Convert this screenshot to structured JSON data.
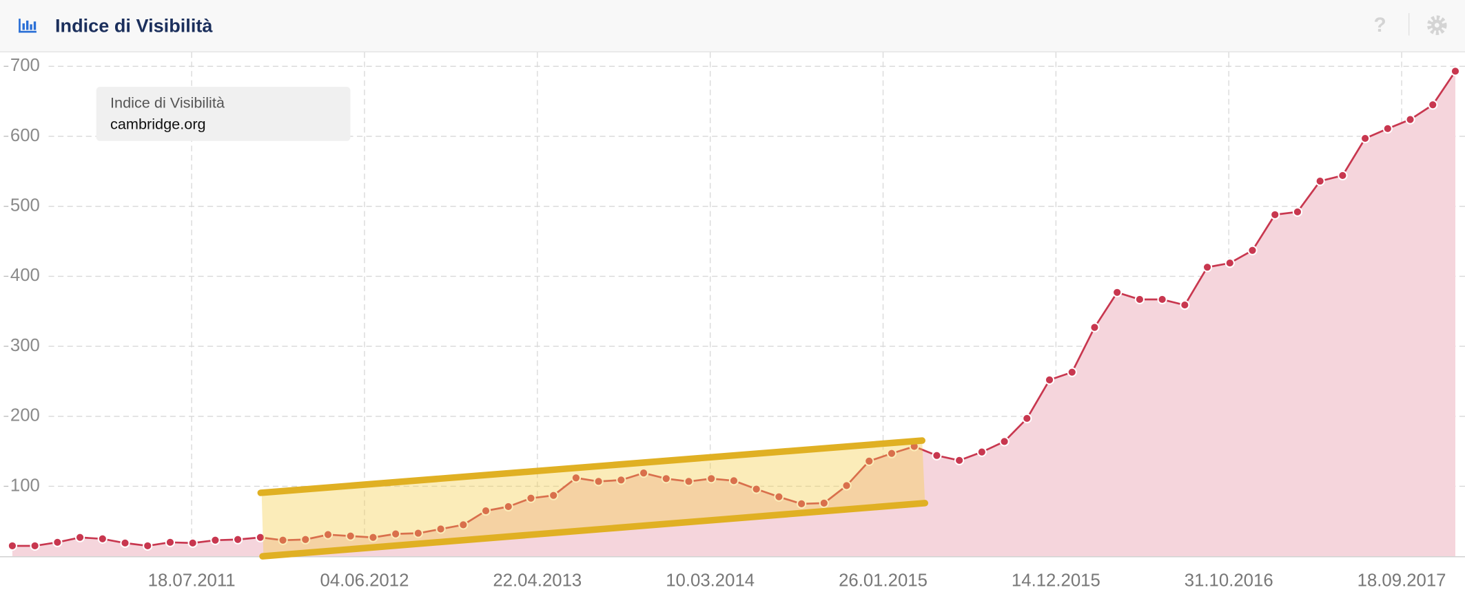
{
  "help": "?",
  "chart_data": {
    "type": "area",
    "title": "Indice di Visibilità",
    "tooltip_title": "Indice di Visibilità",
    "x": [
      "2010-08-18",
      "2010-09-29",
      "2010-11-10",
      "2010-12-22",
      "2011-02-02",
      "2011-03-16",
      "2011-04-27",
      "2011-06-08",
      "2011-07-20",
      "2011-08-31",
      "2011-10-12",
      "2011-11-23",
      "2012-01-04",
      "2012-02-15",
      "2012-03-28",
      "2012-05-09",
      "2012-06-20",
      "2012-08-01",
      "2012-09-12",
      "2012-10-24",
      "2012-12-05",
      "2013-01-16",
      "2013-02-27",
      "2013-04-10",
      "2013-05-22",
      "2013-07-03",
      "2013-08-14",
      "2013-09-25",
      "2013-11-06",
      "2013-12-18",
      "2014-01-29",
      "2014-03-12",
      "2014-04-23",
      "2014-06-04",
      "2014-07-16",
      "2014-08-27",
      "2014-10-08",
      "2014-11-19",
      "2014-12-31",
      "2015-02-11",
      "2015-03-25",
      "2015-05-06",
      "2015-06-17",
      "2015-07-29",
      "2015-09-09",
      "2015-10-21",
      "2015-12-02",
      "2016-01-13",
      "2016-02-24",
      "2016-04-06",
      "2016-05-18",
      "2016-06-29",
      "2016-08-10",
      "2016-09-21",
      "2016-11-02",
      "2016-12-14",
      "2017-01-25",
      "2017-03-08",
      "2017-04-19",
      "2017-05-31",
      "2017-07-12",
      "2017-08-23",
      "2017-10-04",
      "2017-11-15",
      "2017-12-27"
    ],
    "series": [
      {
        "name": "cambridge.org",
        "color": "#c8374f",
        "fill": "#f5d5dc",
        "values": [
          15,
          15,
          20,
          27,
          25,
          19,
          15,
          20,
          19,
          23,
          24,
          27,
          23,
          24,
          31,
          29,
          27,
          32,
          33,
          39,
          45,
          65,
          71,
          83,
          87,
          112,
          107,
          109,
          119,
          111,
          107,
          111,
          108,
          96,
          85,
          75,
          76,
          101,
          136,
          147,
          157,
          144,
          137,
          149,
          164,
          197,
          252,
          263,
          327,
          377,
          367,
          367,
          359,
          413,
          419,
          437,
          488,
          492,
          536,
          544,
          597,
          611,
          624,
          645,
          693
        ]
      }
    ],
    "xlim": [
      "2010-07-26",
      "2018-01-14"
    ],
    "xticks": [
      {
        "value": "2011-07-18",
        "label": "18.07.2011"
      },
      {
        "value": "2012-06-04",
        "label": "04.06.2012"
      },
      {
        "value": "2013-04-22",
        "label": "22.04.2013"
      },
      {
        "value": "2014-03-10",
        "label": "10.03.2014"
      },
      {
        "value": "2015-01-26",
        "label": "26.01.2015"
      },
      {
        "value": "2015-12-14",
        "label": "14.12.2015"
      },
      {
        "value": "2016-10-31",
        "label": "31.10.2016"
      },
      {
        "value": "2017-09-18",
        "label": "18.09.2017"
      }
    ],
    "ylim": [
      0,
      720
    ],
    "yticks": [
      100,
      200,
      300,
      400,
      500,
      600,
      700
    ],
    "grid": true
  }
}
